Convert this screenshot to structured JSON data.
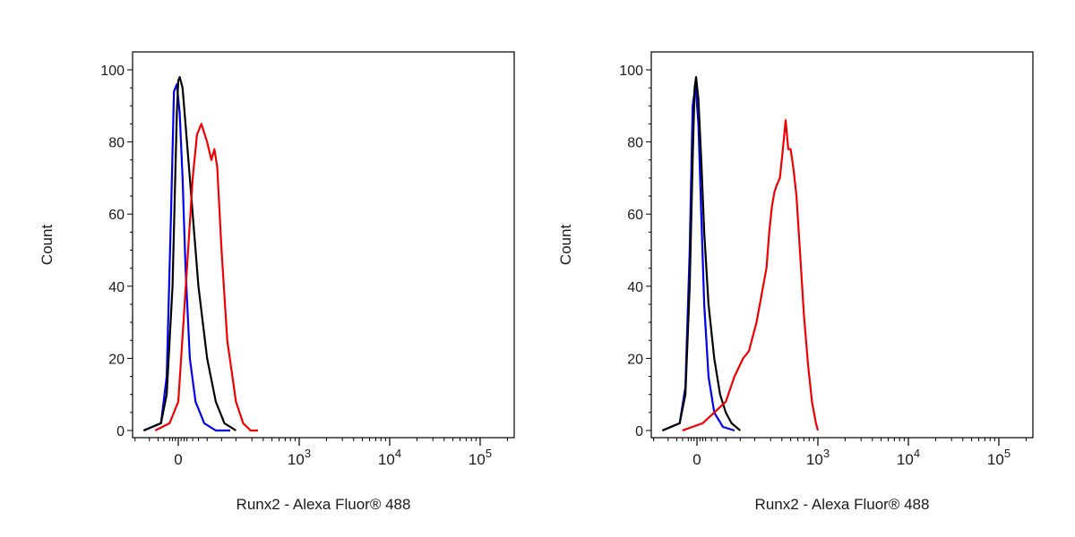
{
  "chart_data": [
    {
      "type": "line",
      "ylabel": "Count",
      "xlabel": "Runx2 - Alexa Fluor® 488",
      "yticks": [
        0,
        20,
        40,
        60,
        80,
        100
      ],
      "xticks": [
        {
          "value": 0,
          "base": "0",
          "exp": ""
        },
        {
          "value": 1000,
          "base": "10",
          "exp": "3"
        },
        {
          "value": 10000,
          "base": "10",
          "exp": "4"
        },
        {
          "value": 100000,
          "base": "10",
          "exp": "5"
        }
      ],
      "xscale": "biexponential",
      "ylim": [
        0,
        100
      ],
      "grid": false,
      "series": [
        {
          "color": "#0000ee",
          "x": [
            -120,
            -60,
            -40,
            -25,
            -15,
            -5,
            5,
            15,
            25,
            40,
            60,
            90,
            130,
            180
          ],
          "y": [
            0,
            2,
            15,
            60,
            94,
            96,
            88,
            70,
            45,
            20,
            8,
            2,
            0,
            0
          ]
        },
        {
          "color": "#000000",
          "x": [
            -120,
            -60,
            -40,
            -20,
            -5,
            0,
            5,
            15,
            30,
            50,
            70,
            100,
            130,
            160,
            200
          ],
          "y": [
            0,
            2,
            10,
            40,
            88,
            97,
            98,
            95,
            80,
            60,
            40,
            20,
            8,
            2,
            0
          ]
        },
        {
          "color": "#ee0000",
          "x": [
            -80,
            -30,
            0,
            10,
            30,
            50,
            65,
            80,
            100,
            115,
            125,
            135,
            150,
            170,
            200,
            240,
            290,
            350
          ],
          "y": [
            0,
            2,
            8,
            20,
            45,
            70,
            82,
            85,
            80,
            75,
            78,
            73,
            50,
            25,
            8,
            2,
            0,
            0
          ]
        }
      ]
    },
    {
      "type": "line",
      "ylabel": "Count",
      "xlabel": "Runx2 - Alexa Fluor® 488",
      "yticks": [
        0,
        20,
        40,
        60,
        80,
        100
      ],
      "xticks": [
        {
          "value": 0,
          "base": "0",
          "exp": ""
        },
        {
          "value": 1000,
          "base": "10",
          "exp": "3"
        },
        {
          "value": 10000,
          "base": "10",
          "exp": "4"
        },
        {
          "value": 100000,
          "base": "10",
          "exp": "5"
        }
      ],
      "xscale": "biexponential",
      "ylim": [
        0,
        100
      ],
      "grid": false,
      "series": [
        {
          "color": "#0000ee",
          "x": [
            -120,
            -60,
            -40,
            -25,
            -15,
            -5,
            5,
            15,
            25,
            40,
            60,
            90,
            130
          ],
          "y": [
            0,
            2,
            12,
            50,
            90,
            96,
            85,
            60,
            35,
            15,
            5,
            1,
            0
          ]
        },
        {
          "color": "#000000",
          "x": [
            -120,
            -60,
            -40,
            -25,
            -15,
            -8,
            -3,
            5,
            15,
            25,
            40,
            60,
            80,
            100,
            120,
            150
          ],
          "y": [
            0,
            2,
            10,
            40,
            75,
            95,
            98,
            92,
            75,
            55,
            35,
            20,
            10,
            5,
            2,
            0
          ]
        },
        {
          "color": "#ee0000",
          "x": [
            -50,
            20,
            60,
            100,
            130,
            160,
            180,
            210,
            240,
            270,
            290,
            310,
            330,
            350,
            380,
            410,
            440,
            470,
            500,
            540,
            580,
            640,
            700,
            780,
            860,
            950,
            1000
          ],
          "y": [
            0,
            2,
            5,
            8,
            15,
            20,
            22,
            30,
            38,
            45,
            55,
            62,
            66,
            68,
            70,
            78,
            86,
            78,
            78,
            72,
            65,
            48,
            32,
            18,
            8,
            2,
            0
          ]
        }
      ]
    }
  ]
}
